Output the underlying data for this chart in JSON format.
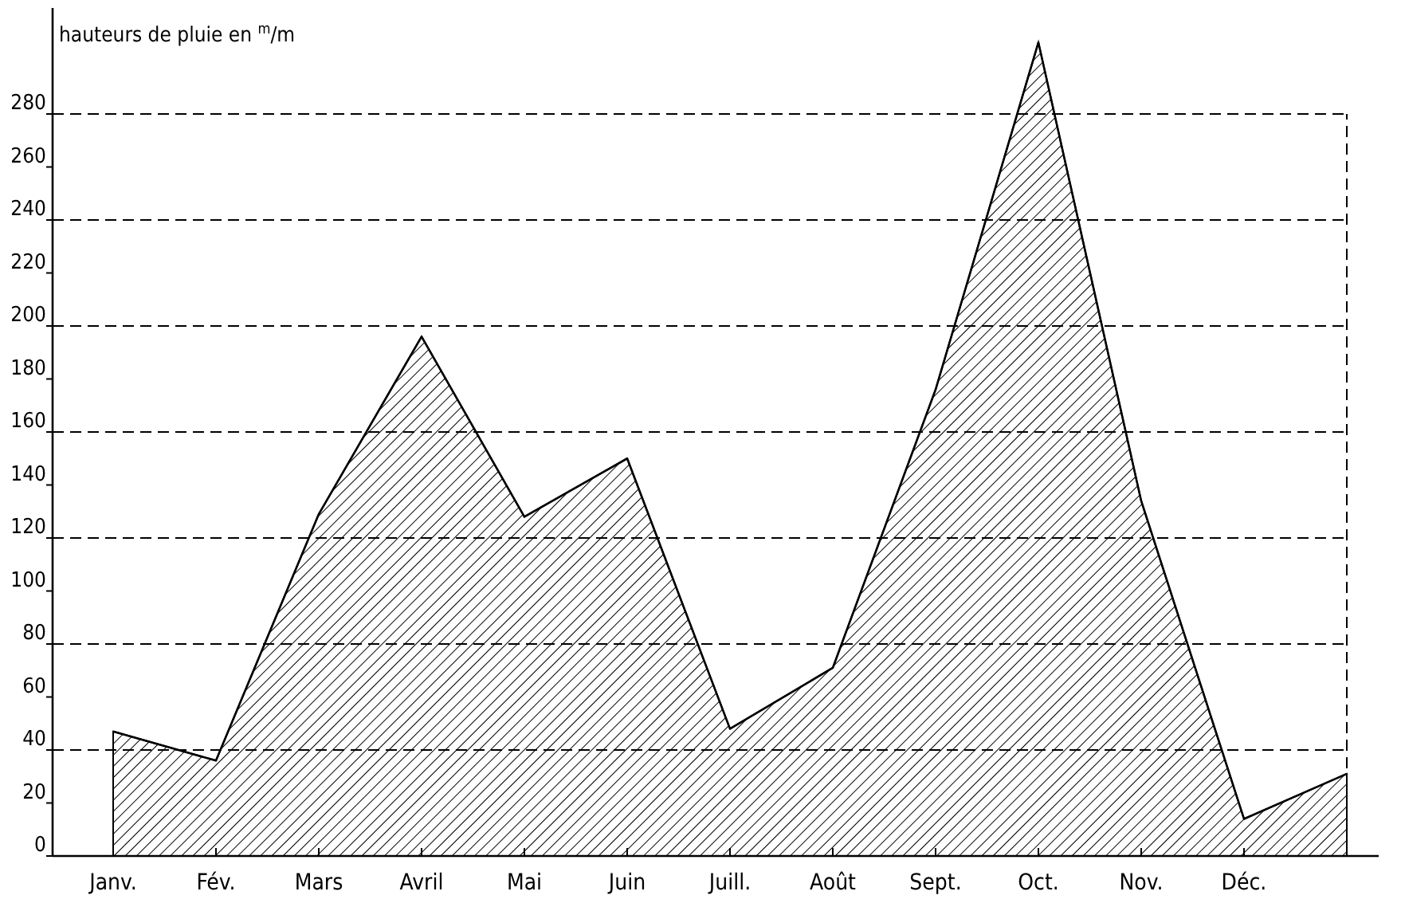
{
  "chart_data": {
    "type": "area",
    "ylabel": "hauteurs de pluie en $^{m}$/m",
    "categories": [
      "Janv.",
      "Fév.",
      "Mars",
      "Avril",
      "Mai",
      "Juin",
      "Juill.",
      "Août",
      "Sept.",
      "Oct.",
      "Nov.",
      "Déc.",
      null
    ],
    "ylim": [
      0,
      320
    ],
    "yticks": [
      0,
      20,
      40,
      60,
      80,
      100,
      120,
      140,
      160,
      180,
      200,
      220,
      240,
      260,
      280
    ],
    "series": [
      {
        "color": "#000000",
        "values": [
          47,
          36,
          129,
          196,
          128,
          150,
          48,
          71,
          176,
          307,
          134,
          14,
          31
        ]
      }
    ],
    "ref_lines": [
      {
        "axis": "y",
        "value": 40,
        "line_style": "dashed"
      },
      {
        "axis": "y",
        "value": 80,
        "line_style": "dashed"
      },
      {
        "axis": "y",
        "value": 120,
        "line_style": "dashed"
      },
      {
        "axis": "y",
        "value": 160,
        "line_style": "dashed"
      },
      {
        "axis": "y",
        "value": 200,
        "line_style": "dashed"
      },
      {
        "axis": "y",
        "value": 240,
        "line_style": "dashed"
      },
      {
        "axis": "y",
        "value": 280,
        "line_style": "dashed"
      }
    ]
  }
}
